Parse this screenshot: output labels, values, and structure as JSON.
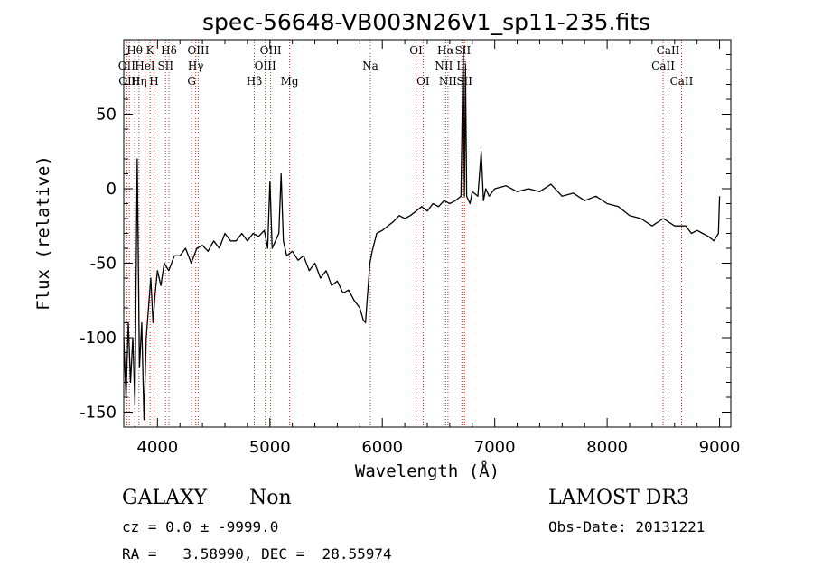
{
  "chart_data": {
    "type": "line",
    "title": "spec-56648-VB003N26V1_sp11-235.fits",
    "xlabel": "Wavelength (Å)",
    "ylabel": "Flux (relative)",
    "xlim": [
      3700,
      9100
    ],
    "ylim": [
      -160,
      100
    ],
    "xticks": [
      4000,
      5000,
      6000,
      7000,
      8000,
      9000
    ],
    "yticks": [
      -150,
      -100,
      -50,
      0,
      50
    ],
    "grid": false,
    "series": [
      {
        "color": "#000000",
        "x": [
          3700,
          3720,
          3740,
          3760,
          3780,
          3800,
          3820,
          3840,
          3860,
          3880,
          3900,
          3920,
          3940,
          3960,
          3980,
          4000,
          4030,
          4060,
          4100,
          4150,
          4200,
          4250,
          4300,
          4350,
          4400,
          4450,
          4500,
          4550,
          4600,
          4650,
          4700,
          4750,
          4800,
          4850,
          4900,
          4950,
          4980,
          5000,
          5020,
          5050,
          5080,
          5100,
          5120,
          5150,
          5200,
          5250,
          5300,
          5350,
          5400,
          5450,
          5500,
          5550,
          5600,
          5650,
          5700,
          5750,
          5800,
          5830,
          5850,
          5870,
          5890,
          5910,
          5950,
          6000,
          6050,
          6100,
          6150,
          6200,
          6250,
          6300,
          6350,
          6400,
          6450,
          6500,
          6550,
          6600,
          6650,
          6700,
          6720,
          6730,
          6740,
          6750,
          6780,
          6800,
          6850,
          6880,
          6900,
          6920,
          6950,
          7000,
          7100,
          7200,
          7300,
          7400,
          7500,
          7600,
          7700,
          7800,
          7900,
          8000,
          8100,
          8200,
          8300,
          8400,
          8500,
          8600,
          8700,
          8750,
          8800,
          8850,
          8900,
          8950,
          8990,
          9000
        ],
        "y": [
          -100,
          -140,
          -90,
          -130,
          -100,
          -145,
          20,
          -120,
          -90,
          -155,
          -100,
          -80,
          -60,
          -90,
          -70,
          -55,
          -65,
          -50,
          -55,
          -45,
          -45,
          -40,
          -50,
          -40,
          -38,
          -42,
          -35,
          -40,
          -30,
          -35,
          -35,
          -30,
          -35,
          -30,
          -32,
          -28,
          -40,
          5,
          -40,
          -35,
          -30,
          10,
          -35,
          -45,
          -42,
          -48,
          -45,
          -55,
          -50,
          -60,
          -55,
          -65,
          -62,
          -70,
          -68,
          -75,
          -80,
          -88,
          -90,
          -70,
          -50,
          -42,
          -30,
          -28,
          -25,
          -22,
          -18,
          -20,
          -18,
          -15,
          -12,
          -15,
          -10,
          -12,
          -8,
          -10,
          -8,
          -5,
          95,
          -5,
          80,
          -5,
          -10,
          -2,
          -5,
          25,
          -8,
          0,
          -5,
          0,
          2,
          -2,
          0,
          -2,
          3,
          -5,
          -3,
          -8,
          -5,
          -10,
          -12,
          -18,
          -20,
          -25,
          -20,
          -25,
          -25,
          -30,
          -28,
          -30,
          -32,
          -35,
          -30,
          -5
        ]
      }
    ],
    "spectral_lines": [
      {
        "name": "OII",
        "x": 3727,
        "row": 1
      },
      {
        "name": "OIII",
        "x": 3750,
        "row": 2
      },
      {
        "name": "Hθ",
        "x": 3798,
        "row": 0
      },
      {
        "name": "Hη",
        "x": 3835,
        "row": 2
      },
      {
        "name": "HeI",
        "x": 3889,
        "row": 1
      },
      {
        "name": "K",
        "x": 3934,
        "row": 0
      },
      {
        "name": "H",
        "x": 3969,
        "row": 2
      },
      {
        "name": "SII",
        "x": 4072,
        "row": 1
      },
      {
        "name": "Hδ",
        "x": 4102,
        "row": 0
      },
      {
        "name": "G",
        "x": 4304,
        "row": 2
      },
      {
        "name": "Hγ",
        "x": 4340,
        "row": 1
      },
      {
        "name": "OIII",
        "x": 4363,
        "row": 0
      },
      {
        "name": "Hβ",
        "x": 4861,
        "row": 2
      },
      {
        "name": "OIII",
        "x": 4959,
        "row": 1
      },
      {
        "name": "OIII",
        "x": 5007,
        "row": 0
      },
      {
        "name": "Mg",
        "x": 5175,
        "row": 2
      },
      {
        "name": "Na",
        "x": 5893,
        "row": 1
      },
      {
        "name": "OI",
        "x": 6300,
        "row": 0
      },
      {
        "name": "OI",
        "x": 6363,
        "row": 2
      },
      {
        "name": "NII",
        "x": 6548,
        "row": 1
      },
      {
        "name": "Hα",
        "x": 6563,
        "row": 0
      },
      {
        "name": "NII",
        "x": 6584,
        "row": 2
      },
      {
        "name": "Li",
        "x": 6708,
        "row": 1
      },
      {
        "name": "SII",
        "x": 6717,
        "row": 0
      },
      {
        "name": "SII",
        "x": 6731,
        "row": 2
      },
      {
        "name": "CaII",
        "x": 8498,
        "row": 1
      },
      {
        "name": "CaII",
        "x": 8542,
        "row": 0
      },
      {
        "name": "CaII",
        "x": 8662,
        "row": 2
      }
    ]
  },
  "info": {
    "class": "GALAXY",
    "subclass": "Non",
    "survey": "LAMOST DR3",
    "cz": "cz = 0.0 ± -9999.0",
    "obsdate": "Obs-Date: 20131221",
    "radec": "RA =   3.58990, DEC =  28.55974"
  }
}
